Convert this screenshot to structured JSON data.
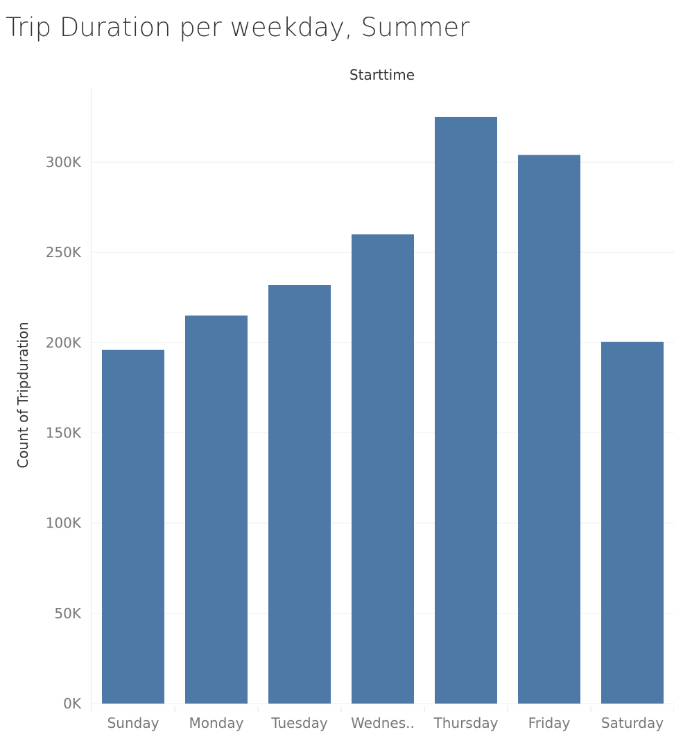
{
  "chart_data": {
    "type": "bar",
    "title": "Trip Duration per weekday, Summer",
    "header_label": "Starttime",
    "ylabel": "Count of Tripduration",
    "categories": [
      "Sunday",
      "Monday",
      "Tuesday",
      "Wednes..",
      "Thursday",
      "Friday",
      "Saturday"
    ],
    "values": [
      196000,
      215000,
      232000,
      260000,
      325000,
      304000,
      200500
    ],
    "ylim": [
      0,
      340000
    ],
    "yticks": [
      0,
      50000,
      100000,
      150000,
      200000,
      250000,
      300000
    ],
    "ytick_labels": [
      "0K",
      "50K",
      "100K",
      "150K",
      "200K",
      "250K",
      "300K"
    ],
    "grid": true,
    "colors": {
      "bar": "#4e79a7"
    }
  }
}
